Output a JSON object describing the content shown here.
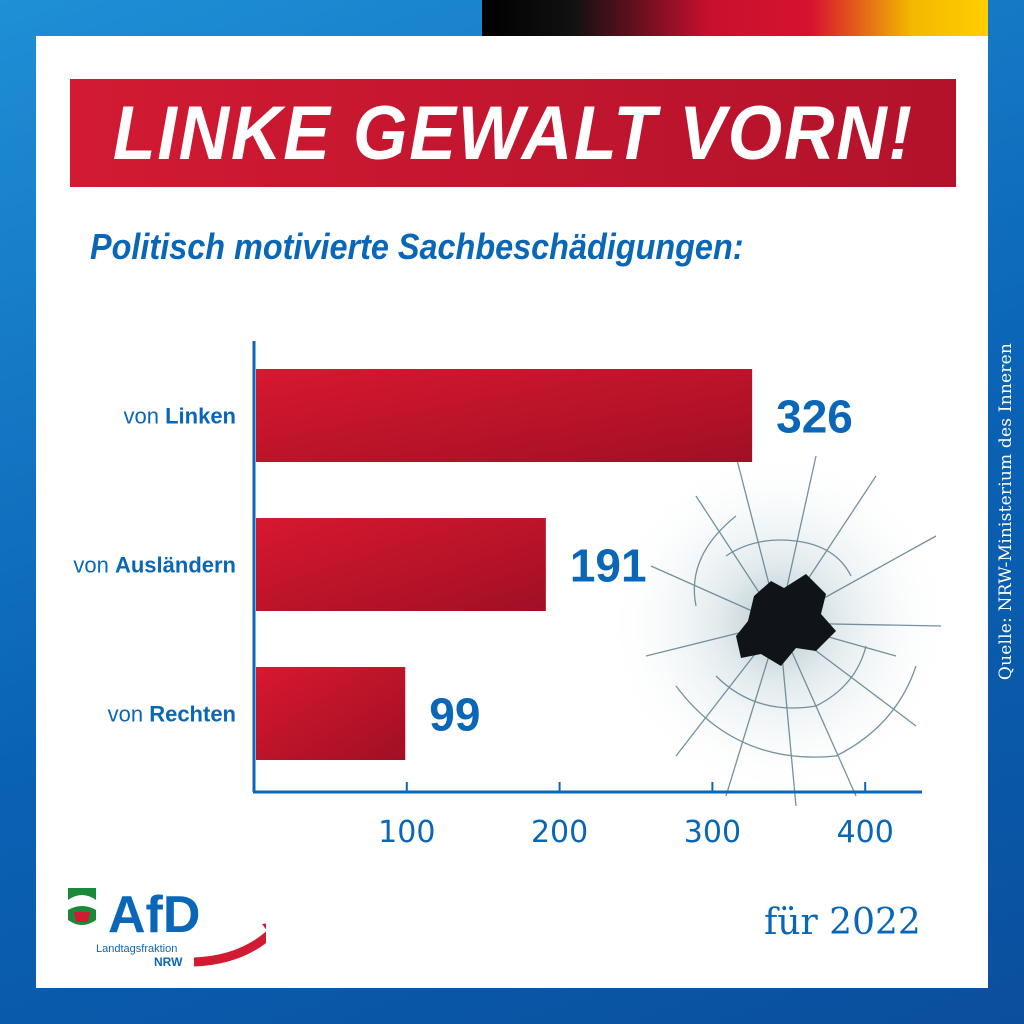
{
  "header": {
    "title": "LINKE GEWALT VORN!",
    "subtitle": "Politisch motivierte Sachbeschädigungen:"
  },
  "footer": {
    "year_label": "für 2022",
    "source": "Quelle: NRW-Ministerium des Inneren",
    "logo_text": "AfD",
    "logo_subtext_1": "Landtagsfraktion",
    "logo_subtext_2": "NRW"
  },
  "colors": {
    "accent_red": "#c8102e",
    "accent_blue": "#0a67b8",
    "background_blue": "#0a62b5"
  },
  "chart_data": {
    "type": "bar",
    "orientation": "horizontal",
    "categories": [
      {
        "prefix": "von ",
        "name": "Linken"
      },
      {
        "prefix": "von ",
        "name": "Ausländern"
      },
      {
        "prefix": "von ",
        "name": "Rechten"
      }
    ],
    "values": [
      326,
      191,
      99
    ],
    "value_labels": [
      "326",
      "191",
      "99"
    ],
    "xticks": [
      100,
      200,
      300,
      400
    ],
    "xlim": [
      0,
      430
    ],
    "grid": false,
    "legend": "none"
  }
}
